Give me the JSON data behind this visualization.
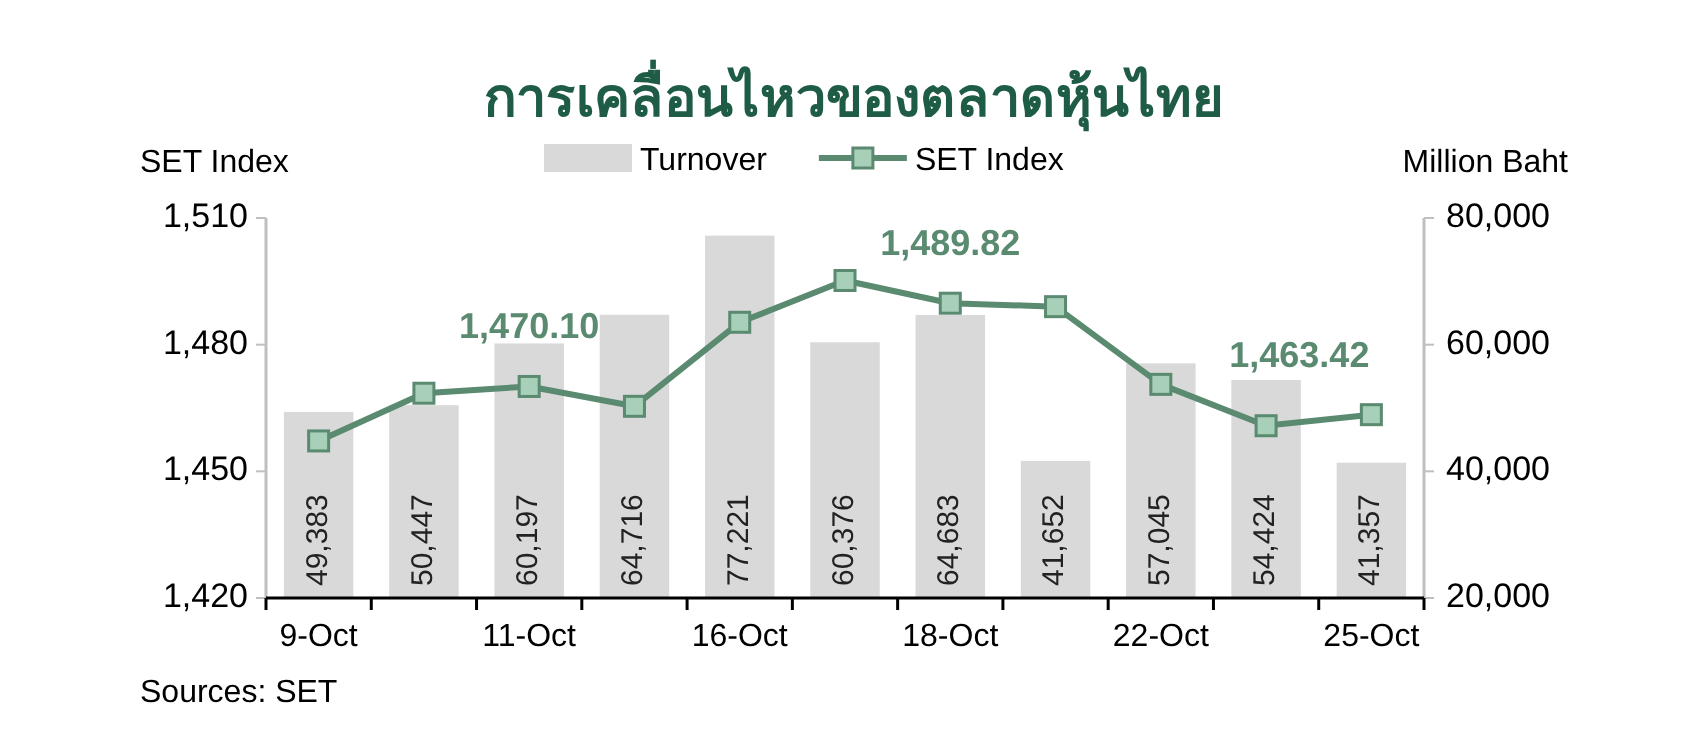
{
  "chart_data": {
    "type": "bar",
    "title": "การเคลื่อนไหวของตลาดหุ้นไทย",
    "ylabel": "SET Index",
    "y2label": "Million Baht",
    "categories": [
      "9-Oct",
      null,
      "11-Oct",
      null,
      "16-Oct",
      null,
      "18-Oct",
      null,
      "22-Oct",
      null,
      "25-Oct"
    ],
    "series": [
      {
        "name": "Turnover",
        "axis": "y2",
        "color": "#d9d9d9",
        "values": [
          49383,
          50447,
          60197,
          64716,
          77221,
          60376,
          64683,
          41652,
          57045,
          54424,
          41357
        ],
        "value_labels": [
          "49,383",
          "50,447",
          "60,197",
          "64,716",
          "77,221",
          "60,376",
          "64,683",
          "41,652",
          "57,045",
          "54,424",
          "41,357"
        ]
      },
      {
        "name": "SET Index",
        "type": "line",
        "color": "#5a8a70",
        "marker": "square",
        "values": [
          1457.2,
          1468.5,
          1470.1,
          1465.4,
          1485.3,
          1495.2,
          1489.82,
          1489.0,
          1470.6,
          1460.8,
          1463.42
        ],
        "value_labels": [
          null,
          null,
          "1,470.10",
          null,
          null,
          null,
          "1,489.82",
          null,
          null,
          null,
          "1,463.42"
        ]
      }
    ],
    "ylim": [
      1420,
      1510
    ],
    "yticks": [
      {
        "value": 1420,
        "label": "1,420"
      },
      {
        "value": 1450,
        "label": "1,450"
      },
      {
        "value": 1480,
        "label": "1,480"
      },
      {
        "value": 1510,
        "label": "1,510"
      }
    ],
    "y2lim": [
      20000,
      80000
    ],
    "y2ticks": [
      {
        "value": 20000,
        "label": "20,000"
      },
      {
        "value": 40000,
        "label": "40,000"
      },
      {
        "value": 60000,
        "label": "60,000"
      },
      {
        "value": 80000,
        "label": "80,000"
      }
    ],
    "legend": "top",
    "grid": false,
    "annotations": [
      "Sources: SET"
    ]
  }
}
